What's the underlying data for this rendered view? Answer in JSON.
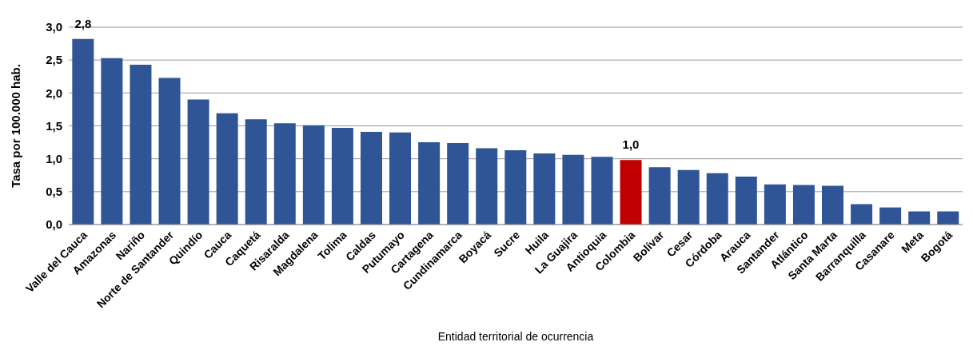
{
  "chart_data": {
    "type": "bar",
    "xlabel": "Entidad territorial de ocurrencia",
    "ylabel": "Tasa por 100.000 hab.",
    "categories": [
      "Valle del Cauca",
      "Amazonas",
      "Nariño",
      "Norte de Santander",
      "Quindío",
      "Cauca",
      "Caquetá",
      "Risaralda",
      "Magdalena",
      "Tolima",
      "Caldas",
      "Putumayo",
      "Cartagena",
      "Cundinamarca",
      "Boyacá",
      "Sucre",
      "Huila",
      "La Guajira",
      "Antioquia",
      "Colombia",
      "Bolívar",
      "Cesar",
      "Córdoba",
      "Arauca",
      "Santander",
      "Atlántico",
      "Santa Marta",
      "Barranquilla",
      "Casanare",
      "Meta",
      "Bogotá"
    ],
    "values": [
      2.82,
      2.53,
      2.43,
      2.23,
      1.9,
      1.69,
      1.6,
      1.54,
      1.51,
      1.47,
      1.41,
      1.4,
      1.25,
      1.24,
      1.16,
      1.13,
      1.08,
      1.06,
      1.03,
      0.98,
      0.87,
      0.83,
      0.78,
      0.73,
      0.61,
      0.6,
      0.59,
      0.31,
      0.26,
      0.2,
      0.2
    ],
    "colors": [
      "#2f5597",
      "#2f5597",
      "#2f5597",
      "#2f5597",
      "#2f5597",
      "#2f5597",
      "#2f5597",
      "#2f5597",
      "#2f5597",
      "#2f5597",
      "#2f5597",
      "#2f5597",
      "#2f5597",
      "#2f5597",
      "#2f5597",
      "#2f5597",
      "#2f5597",
      "#2f5597",
      "#2f5597",
      "#c00000",
      "#2f5597",
      "#2f5597",
      "#2f5597",
      "#2f5597",
      "#2f5597",
      "#2f5597",
      "#2f5597",
      "#2f5597",
      "#2f5597",
      "#2f5597",
      "#2f5597"
    ],
    "value_labels": [
      "2,8",
      null,
      null,
      null,
      null,
      null,
      null,
      null,
      null,
      null,
      null,
      null,
      null,
      null,
      null,
      null,
      null,
      null,
      null,
      "1,0",
      null,
      null,
      null,
      null,
      null,
      null,
      null,
      null,
      null,
      null,
      null
    ],
    "ylim": [
      0,
      3
    ],
    "yticks": [
      {
        "value": 0,
        "label": "0,0"
      },
      {
        "value": 0.5,
        "label": "0,5"
      },
      {
        "value": 1,
        "label": "1,0"
      },
      {
        "value": 1.5,
        "label": "1,5"
      },
      {
        "value": 2,
        "label": "2,0"
      },
      {
        "value": 2.5,
        "label": "2,5"
      },
      {
        "value": 3,
        "label": "3,0"
      }
    ],
    "grid": "y"
  }
}
